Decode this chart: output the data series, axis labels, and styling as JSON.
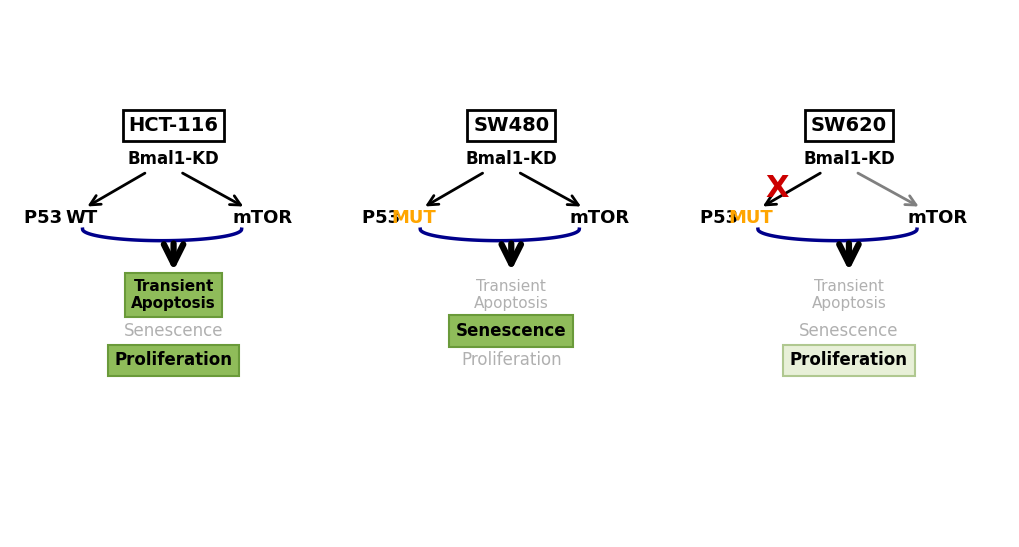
{
  "panels": [
    {
      "title": "HCT-116",
      "bmal1_label": "Bmal1-KD",
      "p53_label": "P53 ",
      "p53_suffix": "WT",
      "p53_suffix_color": "#000000",
      "mtor_label": "mTOR",
      "left_arrow_color": "#000000",
      "right_arrow_color": "#000000",
      "has_red_x": false,
      "big_arrow_color": "#000000",
      "outcomes": [
        {
          "text": "Transient\nApoptosis",
          "active": true,
          "box": true
        },
        {
          "text": "Senescence",
          "active": false,
          "box": false
        },
        {
          "text": "Proliferation",
          "active": true,
          "box": true
        }
      ]
    },
    {
      "title": "SW480",
      "bmal1_label": "Bmal1-KD",
      "p53_label": "P53 ",
      "p53_suffix": "MUT",
      "p53_suffix_color": "#FFA500",
      "mtor_label": "mTOR",
      "left_arrow_color": "#000000",
      "right_arrow_color": "#000000",
      "has_red_x": false,
      "big_arrow_color": "#000000",
      "outcomes": [
        {
          "text": "Transient\nApoptosis",
          "active": false,
          "box": false
        },
        {
          "text": "Senescence",
          "active": true,
          "box": true
        },
        {
          "text": "Proliferation",
          "active": false,
          "box": false
        }
      ]
    },
    {
      "title": "SW620",
      "bmal1_label": "Bmal1-KD",
      "p53_label": "P53 ",
      "p53_suffix": "MUT",
      "p53_suffix_color": "#FFA500",
      "mtor_label": "mTOR",
      "left_arrow_color": "#000000",
      "right_arrow_color": "#808080",
      "has_red_x": true,
      "big_arrow_color": "#000000",
      "outcomes": [
        {
          "text": "Transient\nApoptosis",
          "active": false,
          "box": false
        },
        {
          "text": "Senescence",
          "active": false,
          "box": false
        },
        {
          "text": "Proliferation",
          "active": true,
          "box": true,
          "light_box": true
        }
      ]
    }
  ],
  "bg_color": "#ffffff",
  "active_text_color": "#000000",
  "inactive_text_color": "#b0b0b0",
  "box_face_color": "#8fbc5a",
  "box_edge_color": "#6a9a3a",
  "light_box_face_color": "#e8f0d8",
  "light_box_edge_color": "#b0c890",
  "title_box_color": "#000000",
  "brace_color": "#00008B",
  "red_x_color": "#cc0000"
}
